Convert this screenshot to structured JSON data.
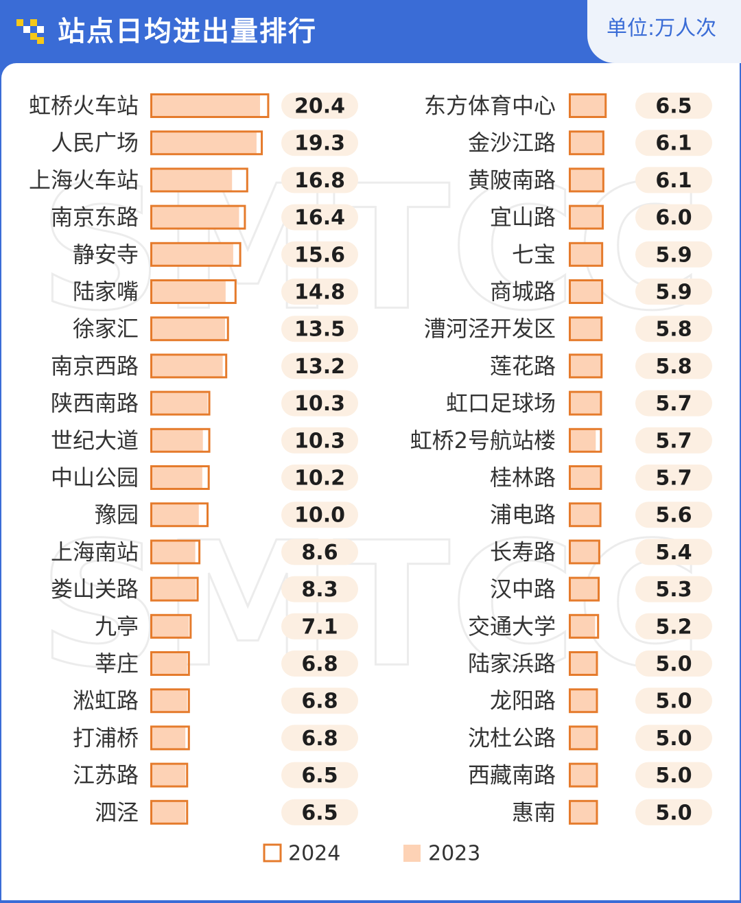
{
  "header": {
    "title": "站点日均进出量排行",
    "unit": "单位:万人次"
  },
  "colors": {
    "header_bg": "#3a6cd6",
    "bar_2024_stroke": "#e57b2c",
    "bar_2023_fill": "#fdd2b5",
    "value_pill": "#fcefe2",
    "logo_yellow": "#f6c818"
  },
  "watermark": "SMTCC",
  "chart_data": [
    {
      "type": "bar",
      "orientation": "horizontal",
      "title": "",
      "legend": {
        "placement": "bottom-center",
        "entries": [
          "2024",
          "2023"
        ]
      },
      "categories": [
        "虹桥火车站",
        "人民广场",
        "上海火车站",
        "南京东路",
        "静安寺",
        "陆家嘴",
        "徐家汇",
        "南京西路",
        "陕西南路",
        "世纪大道",
        "中山公园",
        "豫园",
        "上海南站",
        "娄山关路",
        "九亭",
        "莘庄",
        "淞虹路",
        "打浦桥",
        "江苏路",
        "泗泾"
      ],
      "series": [
        {
          "name": "2024",
          "values": [
            20.4,
            19.3,
            16.8,
            16.4,
            15.6,
            14.8,
            13.5,
            13.2,
            10.3,
            10.3,
            10.2,
            10.0,
            8.6,
            8.3,
            7.1,
            6.8,
            6.8,
            6.8,
            6.5,
            6.5
          ]
        },
        {
          "name": "2023",
          "values": [
            19.0,
            18.4,
            14.2,
            15.4,
            14.4,
            13.1,
            13.0,
            12.6,
            10.0,
            9.2,
            9.1,
            8.5,
            7.9,
            8.0,
            6.8,
            6.5,
            6.5,
            6.2,
            6.2,
            6.2
          ]
        }
      ],
      "value_labels": [
        "20.4",
        "19.3",
        "16.8",
        "16.4",
        "15.6",
        "14.8",
        "13.5",
        "13.2",
        "10.3",
        "10.3",
        "10.2",
        "10.0",
        "8.6",
        "8.3",
        "7.1",
        "6.8",
        "6.8",
        "6.8",
        "6.5",
        "6.5"
      ]
    },
    {
      "type": "bar",
      "orientation": "horizontal",
      "title": "",
      "categories": [
        "东方体育中心",
        "金沙江路",
        "黄陂南路",
        "宜山路",
        "七宝",
        "商城路",
        "漕河泾开发区",
        "莲花路",
        "虹口足球场",
        "虹桥2号航站楼",
        "桂林路",
        "浦电路",
        "长寿路",
        "汉中路",
        "交通大学",
        "陆家浜路",
        "龙阳路",
        "沈杜公路",
        "西藏南路",
        "惠南"
      ],
      "series": [
        {
          "name": "2024",
          "values": [
            6.5,
            6.1,
            6.1,
            6.0,
            5.9,
            5.9,
            5.8,
            5.8,
            5.7,
            5.7,
            5.7,
            5.6,
            5.4,
            5.3,
            5.2,
            5.0,
            5.0,
            5.0,
            5.0,
            5.0
          ]
        },
        {
          "name": "2023",
          "values": [
            6.4,
            6.0,
            6.0,
            5.9,
            5.8,
            5.8,
            5.7,
            5.7,
            5.6,
            4.8,
            5.6,
            5.5,
            5.3,
            5.2,
            4.7,
            4.9,
            4.9,
            4.9,
            4.9,
            4.9
          ]
        }
      ],
      "value_labels": [
        "6.5",
        "6.1",
        "6.1",
        "6.0",
        "5.9",
        "5.9",
        "5.8",
        "5.8",
        "5.7",
        "5.7",
        "5.7",
        "5.6",
        "5.4",
        "5.3",
        "5.2",
        "5.0",
        "5.0",
        "5.0",
        "5.0",
        "5.0"
      ]
    }
  ]
}
